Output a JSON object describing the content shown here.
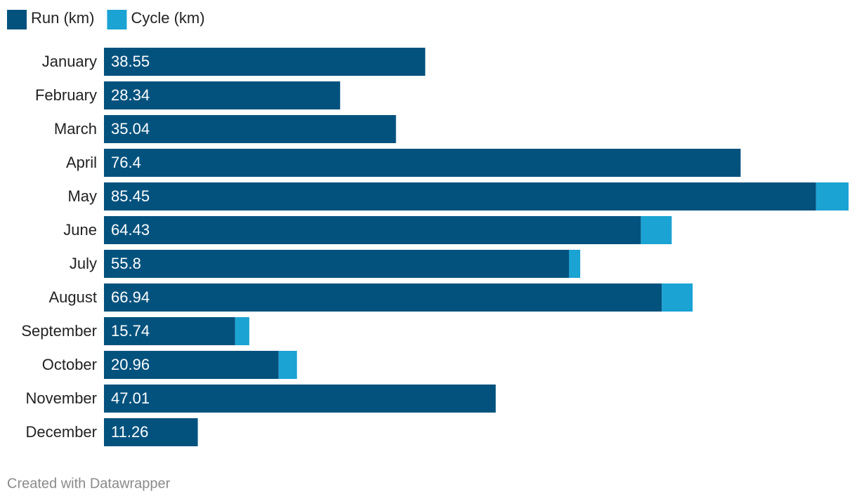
{
  "chart_data": {
    "type": "stacked-bar-horizontal",
    "categories": [
      "January",
      "February",
      "March",
      "April",
      "May",
      "June",
      "July",
      "August",
      "September",
      "October",
      "November",
      "December"
    ],
    "series": [
      {
        "name": "Run (km)",
        "color": "#03527e",
        "values": [
          38.55,
          28.34,
          35.04,
          76.4,
          85.45,
          64.43,
          55.8,
          66.94,
          15.74,
          20.96,
          47.01,
          11.26
        ]
      },
      {
        "name": "Cycle (km)",
        "color": "#1ba3d3",
        "values": [
          0,
          0,
          0,
          0,
          3.9,
          3.7,
          1.35,
          3.7,
          1.7,
          2.2,
          0,
          0
        ]
      }
    ],
    "footer": "Created with Datawrapper"
  }
}
